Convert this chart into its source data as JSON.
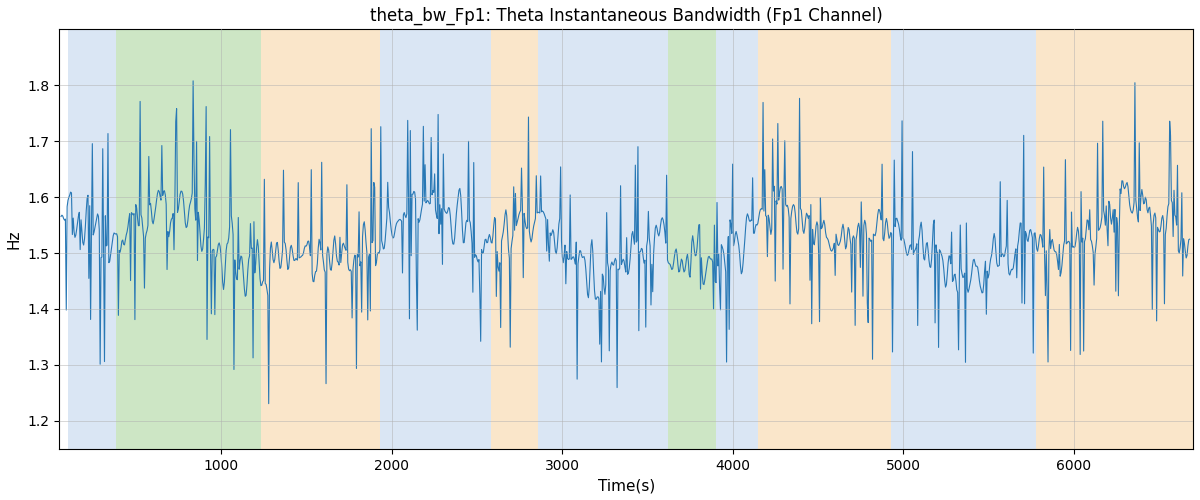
{
  "title": "theta_bw_Fp1: Theta Instantaneous Bandwidth (Fp1 Channel)",
  "xlabel": "Time(s)",
  "ylabel": "Hz",
  "xlim": [
    50,
    6700
  ],
  "ylim": [
    1.15,
    1.9
  ],
  "line_color": "#2878b5",
  "line_width": 0.8,
  "background_bands": [
    {
      "xmin": 100,
      "xmax": 380,
      "color": "#adc8e8",
      "alpha": 0.45
    },
    {
      "xmin": 380,
      "xmax": 1230,
      "color": "#90c97f",
      "alpha": 0.45
    },
    {
      "xmin": 1230,
      "xmax": 1930,
      "color": "#f5c88a",
      "alpha": 0.45
    },
    {
      "xmin": 1930,
      "xmax": 2580,
      "color": "#adc8e8",
      "alpha": 0.45
    },
    {
      "xmin": 2580,
      "xmax": 2860,
      "color": "#f5c88a",
      "alpha": 0.45
    },
    {
      "xmin": 2860,
      "xmax": 3620,
      "color": "#adc8e8",
      "alpha": 0.45
    },
    {
      "xmin": 3620,
      "xmax": 3900,
      "color": "#90c97f",
      "alpha": 0.45
    },
    {
      "xmin": 3900,
      "xmax": 4150,
      "color": "#adc8e8",
      "alpha": 0.45
    },
    {
      "xmin": 4150,
      "xmax": 4930,
      "color": "#f5c88a",
      "alpha": 0.45
    },
    {
      "xmin": 4930,
      "xmax": 5780,
      "color": "#adc8e8",
      "alpha": 0.45
    },
    {
      "xmin": 5780,
      "xmax": 6700,
      "color": "#f5c88a",
      "alpha": 0.45
    }
  ],
  "xticks": [
    1000,
    2000,
    3000,
    4000,
    5000,
    6000
  ],
  "yticks": [
    1.2,
    1.3,
    1.4,
    1.5,
    1.6,
    1.7,
    1.8
  ],
  "grid_color": "#b0b0b0",
  "grid_alpha": 0.5,
  "seed": 42,
  "n_points": 1300,
  "t_start": 60,
  "t_end": 6680,
  "figsize": [
    12.0,
    5.0
  ],
  "dpi": 100
}
